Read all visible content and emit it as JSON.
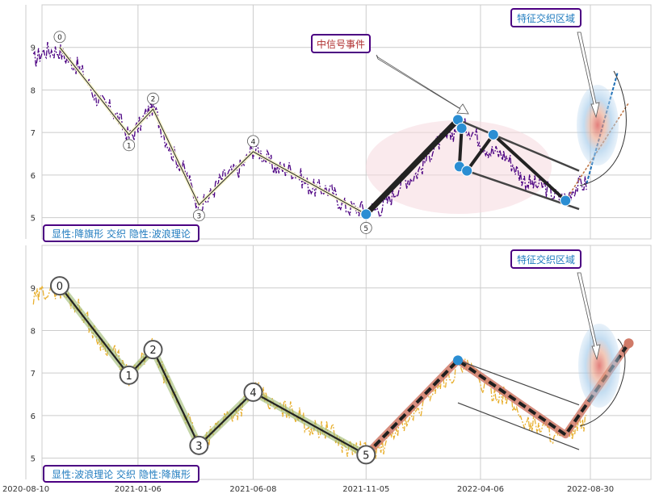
{
  "chart_data": [
    {
      "type": "line",
      "panel": "top",
      "ylim": [
        4.5,
        10.0
      ],
      "yticks": [
        5,
        6,
        7,
        8,
        9
      ],
      "grid": true,
      "wave_points": [
        {
          "label": "0",
          "date": "2020-09-24",
          "value": 9.0
        },
        {
          "label": "1",
          "date": "2020-12-25",
          "value": 6.95
        },
        {
          "label": "2",
          "date": "2021-01-26",
          "value": 7.55
        },
        {
          "label": "3",
          "date": "2021-03-28",
          "value": 5.3
        },
        {
          "label": "4",
          "date": "2021-06-08",
          "value": 6.55
        },
        {
          "label": "5",
          "date": "2021-11-05",
          "value": 5.08
        }
      ],
      "flag_pole": [
        {
          "date": "2021-11-05",
          "value": 5.08
        },
        {
          "date": "2022-03-07",
          "value": 7.3
        }
      ],
      "flag_zigzag": [
        {
          "date": "2022-03-07",
          "value": 7.3
        },
        {
          "date": "2022-03-12",
          "value": 7.1
        },
        {
          "date": "2022-03-09",
          "value": 6.2
        },
        {
          "date": "2022-03-19",
          "value": 6.1
        },
        {
          "date": "2022-04-23",
          "value": 6.95
        },
        {
          "date": "2022-07-28",
          "value": 5.4
        }
      ],
      "highlight_dots": [
        {
          "date": "2021-11-05",
          "value": 5.08
        },
        {
          "date": "2022-03-07",
          "value": 7.3
        },
        {
          "date": "2022-03-12",
          "value": 7.1
        },
        {
          "date": "2022-03-09",
          "value": 6.2
        },
        {
          "date": "2022-03-19",
          "value": 6.1
        },
        {
          "date": "2022-04-23",
          "value": 6.95
        },
        {
          "date": "2022-07-28",
          "value": 5.4
        }
      ],
      "annotations": {
        "mid_signal": "中信号事件",
        "feature_zone": "特征交织区域",
        "explicit_implicit": "显性:降旗形 交织 隐性:波浪理论"
      },
      "accent_color": "#4b0082"
    },
    {
      "type": "line",
      "panel": "bottom",
      "ylim": [
        4.5,
        10.0
      ],
      "yticks": [
        5,
        6,
        7,
        8,
        9
      ],
      "xticks": [
        "2020-08-10",
        "2021-01-06",
        "2021-06-08",
        "2021-11-05",
        "2022-04-06",
        "2022-08-30"
      ],
      "grid": true,
      "wave_points": [
        {
          "label": "0",
          "date": "2020-09-24",
          "value": 9.05
        },
        {
          "label": "1",
          "date": "2020-12-25",
          "value": 6.95
        },
        {
          "label": "2",
          "date": "2021-01-26",
          "value": 7.55
        },
        {
          "label": "3",
          "date": "2021-03-28",
          "value": 5.3
        },
        {
          "label": "4",
          "date": "2021-06-08",
          "value": 6.55
        },
        {
          "label": "5",
          "date": "2021-11-05",
          "value": 5.08
        }
      ],
      "flag_path": [
        {
          "date": "2021-11-05",
          "value": 5.08
        },
        {
          "date": "2022-03-07",
          "value": 7.3
        },
        {
          "date": "2022-07-28",
          "value": 5.55
        },
        {
          "date": "2022-10-20",
          "value": 7.7
        }
      ],
      "annotations": {
        "feature_zone": "特征交织区域",
        "explicit_implicit": "显性:波浪理论 交织 隐性:降旗形"
      },
      "accent_color": "#e8b030"
    }
  ]
}
